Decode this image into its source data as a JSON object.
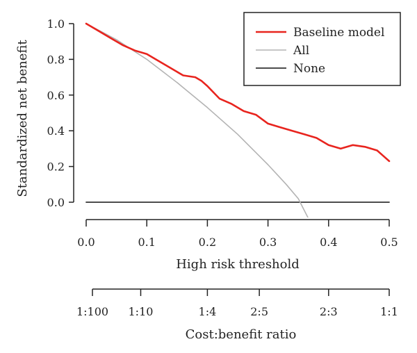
{
  "chart_data": {
    "type": "line",
    "xlabel": "High risk threshold",
    "ylabel": "Standardized net benefit",
    "xlim": [
      0,
      0.5
    ],
    "ylim": [
      -0.1,
      1.0
    ],
    "x_ticks": [
      "0.0",
      "0.1",
      "0.2",
      "0.3",
      "0.4",
      "0.5"
    ],
    "y_ticks": [
      "0.0",
      "0.2",
      "0.4",
      "0.6",
      "0.8",
      "1.0"
    ],
    "legend_position": "top-right",
    "series": [
      {
        "name": "Baseline model",
        "color": "#e8241e",
        "x": [
          0.0,
          0.02,
          0.04,
          0.06,
          0.08,
          0.1,
          0.12,
          0.14,
          0.16,
          0.18,
          0.19,
          0.2,
          0.22,
          0.24,
          0.26,
          0.28,
          0.3,
          0.32,
          0.34,
          0.36,
          0.38,
          0.4,
          0.42,
          0.44,
          0.46,
          0.48,
          0.49,
          0.5
        ],
        "y": [
          1.0,
          0.96,
          0.92,
          0.88,
          0.85,
          0.83,
          0.79,
          0.75,
          0.71,
          0.7,
          0.68,
          0.65,
          0.58,
          0.55,
          0.51,
          0.49,
          0.44,
          0.42,
          0.4,
          0.38,
          0.36,
          0.32,
          0.3,
          0.32,
          0.31,
          0.29,
          0.26,
          0.23
        ]
      },
      {
        "name": "All",
        "color": "#b3b3b3",
        "x": [
          0.0,
          0.05,
          0.1,
          0.15,
          0.2,
          0.25,
          0.3,
          0.33,
          0.35,
          0.368
        ],
        "y": [
          1.0,
          0.91,
          0.8,
          0.67,
          0.53,
          0.38,
          0.21,
          0.1,
          0.02,
          -0.1
        ]
      },
      {
        "name": "None",
        "color": "#333333",
        "x": [
          0.0,
          0.5
        ],
        "y": [
          0.0,
          0.0
        ]
      }
    ],
    "secondary_axis": {
      "label": "Cost:benefit ratio",
      "ticks": [
        {
          "x": 0.0,
          "label": "1:100"
        },
        {
          "x": 0.09,
          "label": "1:10"
        },
        {
          "x": 0.2,
          "label": "1:4"
        },
        {
          "x": 0.2857,
          "label": "2:5"
        },
        {
          "x": 0.4,
          "label": "2:3"
        },
        {
          "x": 0.5,
          "label": "1:1"
        }
      ]
    }
  }
}
